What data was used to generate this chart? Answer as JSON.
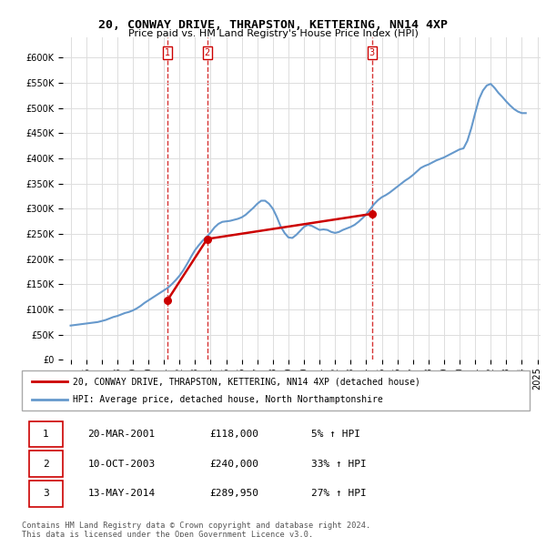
{
  "title": "20, CONWAY DRIVE, THRAPSTON, KETTERING, NN14 4XP",
  "subtitle": "Price paid vs. HM Land Registry's House Price Index (HPI)",
  "legend_entry1": "20, CONWAY DRIVE, THRAPSTON, KETTERING, NN14 4XP (detached house)",
  "legend_entry2": "HPI: Average price, detached house, North Northamptonshire",
  "footer1": "Contains HM Land Registry data © Crown copyright and database right 2024.",
  "footer2": "This data is licensed under the Open Government Licence v3.0.",
  "sale_labels": [
    "1",
    "2",
    "3"
  ],
  "sale_dates": [
    "20-MAR-2001",
    "10-OCT-2003",
    "13-MAY-2014"
  ],
  "sale_prices": [
    "£118,000",
    "£240,000",
    "£289,950"
  ],
  "sale_hpi": [
    "5% ↑ HPI",
    "33% ↑ HPI",
    "27% ↑ HPI"
  ],
  "price_line_color": "#cc0000",
  "hpi_line_color": "#6699cc",
  "sale_marker_color": "#cc0000",
  "vline_color": "#cc0000",
  "background_color": "#ffffff",
  "grid_color": "#dddddd",
  "ylim": [
    0,
    630000
  ],
  "yticks": [
    0,
    50000,
    100000,
    150000,
    200000,
    250000,
    300000,
    350000,
    400000,
    450000,
    500000,
    550000,
    600000
  ],
  "price_data": {
    "years": [
      1995.0,
      1995.25,
      1995.5,
      1995.75,
      1996.0,
      1996.25,
      1996.5,
      1996.75,
      1997.0,
      1997.25,
      1997.5,
      1997.75,
      1998.0,
      1998.25,
      1998.5,
      1998.75,
      1999.0,
      1999.25,
      1999.5,
      1999.75,
      2000.0,
      2000.25,
      2000.5,
      2000.75,
      2001.0,
      2001.25,
      2001.5,
      2001.75,
      2002.0,
      2002.25,
      2002.5,
      2002.75,
      2003.0,
      2003.25,
      2003.5,
      2003.75,
      2004.0,
      2004.25,
      2004.5,
      2004.75,
      2005.0,
      2005.25,
      2005.5,
      2005.75,
      2006.0,
      2006.25,
      2006.5,
      2006.75,
      2007.0,
      2007.25,
      2007.5,
      2007.75,
      2008.0,
      2008.25,
      2008.5,
      2008.75,
      2009.0,
      2009.25,
      2009.5,
      2009.75,
      2010.0,
      2010.25,
      2010.5,
      2010.75,
      2011.0,
      2011.25,
      2011.5,
      2011.75,
      2012.0,
      2012.25,
      2012.5,
      2012.75,
      2013.0,
      2013.25,
      2013.5,
      2013.75,
      2014.0,
      2014.25,
      2014.5,
      2014.75,
      2015.0,
      2015.25,
      2015.5,
      2015.75,
      2016.0,
      2016.25,
      2016.5,
      2016.75,
      2017.0,
      2017.25,
      2017.5,
      2017.75,
      2018.0,
      2018.25,
      2018.5,
      2018.75,
      2019.0,
      2019.25,
      2019.5,
      2019.75,
      2020.0,
      2020.25,
      2020.5,
      2020.75,
      2021.0,
      2021.25,
      2021.5,
      2021.75,
      2022.0,
      2022.25,
      2022.5,
      2022.75,
      2023.0,
      2023.25,
      2023.5,
      2023.75,
      2024.0,
      2024.25
    ],
    "hpi_values": [
      68000,
      69000,
      70000,
      71000,
      72000,
      73000,
      74000,
      75000,
      77000,
      79000,
      82000,
      85000,
      87000,
      90000,
      93000,
      95000,
      98000,
      102000,
      107000,
      113000,
      118000,
      123000,
      128000,
      133000,
      138000,
      143000,
      150000,
      158000,
      167000,
      178000,
      191000,
      205000,
      218000,
      228000,
      237000,
      244000,
      253000,
      263000,
      270000,
      274000,
      275000,
      276000,
      278000,
      280000,
      283000,
      288000,
      295000,
      302000,
      310000,
      316000,
      316000,
      310000,
      300000,
      284000,
      265000,
      252000,
      243000,
      242000,
      248000,
      256000,
      264000,
      268000,
      266000,
      262000,
      258000,
      259000,
      258000,
      254000,
      252000,
      254000,
      258000,
      261000,
      264000,
      268000,
      274000,
      281000,
      289000,
      299000,
      309000,
      317000,
      323000,
      327000,
      332000,
      338000,
      344000,
      350000,
      356000,
      361000,
      367000,
      374000,
      381000,
      385000,
      388000,
      392000,
      396000,
      399000,
      402000,
      406000,
      410000,
      414000,
      418000,
      420000,
      435000,
      460000,
      490000,
      518000,
      535000,
      545000,
      548000,
      540000,
      530000,
      522000,
      513000,
      505000,
      498000,
      493000,
      490000,
      490000
    ],
    "price_paid_years": [
      2001.22,
      2003.78,
      2014.37
    ],
    "price_paid_values": [
      118000,
      240000,
      289950
    ]
  }
}
